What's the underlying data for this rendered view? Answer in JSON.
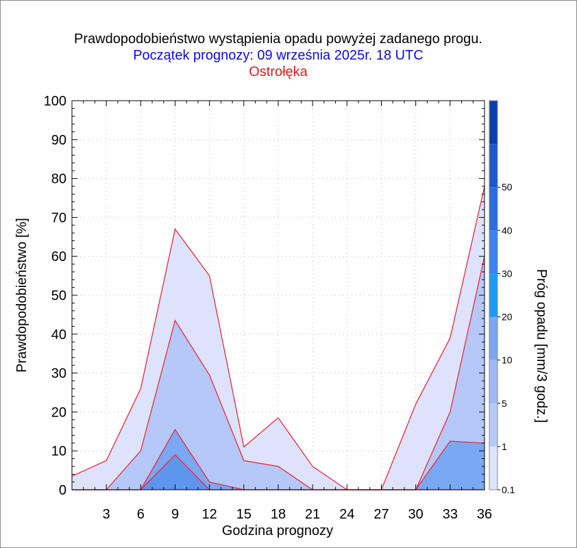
{
  "chart_data": {
    "type": "area",
    "title": "Prawdopodobieństwo wystąpienia opadu powyżej zadanego progu.",
    "subtitle": "Początek prognozy: 09 września 2025r. 18 UTC",
    "location": "Ostrołęka",
    "xlabel": "Godzina prognozy",
    "ylabel": "Prawdopodobieństwo [%]",
    "x": [
      0,
      3,
      6,
      9,
      12,
      15,
      18,
      21,
      24,
      27,
      30,
      33,
      36
    ],
    "xticks": [
      3,
      6,
      9,
      12,
      15,
      18,
      21,
      24,
      27,
      30,
      33,
      36
    ],
    "xlim": [
      0,
      36
    ],
    "yticks": [
      0,
      10,
      20,
      30,
      40,
      50,
      60,
      70,
      80,
      90,
      100
    ],
    "ylim": [
      0,
      100
    ],
    "grid": true,
    "series": [
      {
        "threshold": "0.1",
        "color": "#dde3fb",
        "values": [
          3.5,
          7.5,
          26,
          67,
          55,
          11,
          18.5,
          6,
          0,
          0,
          22,
          39,
          78
        ]
      },
      {
        "threshold": "1",
        "color": "#b6c8f8",
        "values": [
          0,
          0,
          10,
          43.5,
          29.5,
          7.5,
          6,
          0,
          0,
          0,
          0,
          20,
          60
        ]
      },
      {
        "threshold": "5",
        "color": "#7aa8f2",
        "values": [
          0,
          0,
          0,
          15.5,
          2,
          0,
          0,
          0,
          0,
          0,
          0,
          12.5,
          12
        ]
      },
      {
        "threshold": "10",
        "color": "#5e96ee",
        "values": [
          0,
          0,
          0,
          9,
          0,
          0,
          0,
          0,
          0,
          0,
          0,
          0,
          0
        ]
      }
    ],
    "colorbar": {
      "label": "Próg opadu [mm/3 godz.]",
      "ticks": [
        "0.1",
        "1",
        "5",
        "10",
        "20",
        "30",
        "40",
        "50"
      ],
      "colors": [
        "#dde3fb",
        "#b6c8f8",
        "#9dbaf6",
        "#7aa8f2",
        "#1a9cf5",
        "#3a83ee",
        "#2a6ee0",
        "#1a58cc",
        "#0a40ae"
      ]
    }
  }
}
